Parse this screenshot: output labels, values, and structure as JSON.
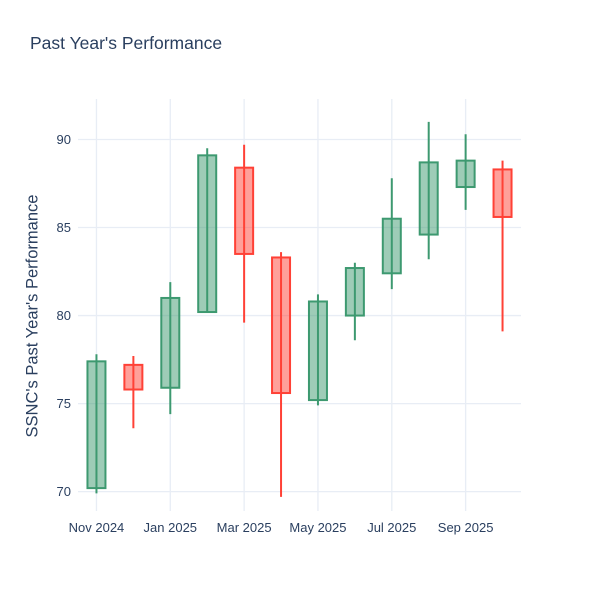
{
  "chart_data": {
    "type": "candlestick",
    "title": "Past Year's Performance",
    "xlabel": "",
    "ylabel": "SSNC's Past Year's Performance",
    "ylim": [
      68.9,
      92.3
    ],
    "grid": true,
    "legend": "none",
    "y_ticks": [
      70,
      75,
      80,
      85,
      90
    ],
    "x_ticks": [
      {
        "candle_index": 0,
        "label": "Nov 2024"
      },
      {
        "candle_index": 2,
        "label": "Jan 2025"
      },
      {
        "candle_index": 4,
        "label": "Mar 2025"
      },
      {
        "candle_index": 6,
        "label": "May 2025"
      },
      {
        "candle_index": 8,
        "label": "Jul 2025"
      },
      {
        "candle_index": 10,
        "label": "Sep 2025"
      }
    ],
    "candles": [
      {
        "period": "Nov 2024",
        "open": 70.2,
        "high": 77.8,
        "low": 69.9,
        "close": 77.4
      },
      {
        "period": "Dec 2024",
        "open": 77.2,
        "high": 77.7,
        "low": 73.6,
        "close": 75.8
      },
      {
        "period": "Jan 2025",
        "open": 75.9,
        "high": 81.9,
        "low": 74.4,
        "close": 81.0
      },
      {
        "period": "Feb 2025",
        "open": 80.2,
        "high": 89.5,
        "low": 80.2,
        "close": 89.1
      },
      {
        "period": "Mar 2025",
        "open": 88.4,
        "high": 89.7,
        "low": 79.6,
        "close": 83.5
      },
      {
        "period": "Apr 2025",
        "open": 83.3,
        "high": 83.6,
        "low": 69.7,
        "close": 75.6
      },
      {
        "period": "May 2025",
        "open": 75.2,
        "high": 81.2,
        "low": 74.9,
        "close": 80.8
      },
      {
        "period": "Jun 2025",
        "open": 80.0,
        "high": 83.0,
        "low": 78.6,
        "close": 82.7
      },
      {
        "period": "Jul 2025",
        "open": 82.4,
        "high": 87.8,
        "low": 81.5,
        "close": 85.5
      },
      {
        "period": "Aug 2025",
        "open": 84.6,
        "high": 91.0,
        "low": 83.2,
        "close": 88.7
      },
      {
        "period": "Sep 2025",
        "open": 87.3,
        "high": 90.3,
        "low": 86.0,
        "close": 88.8
      },
      {
        "period": "Oct 2025",
        "open": 88.3,
        "high": 88.8,
        "low": 79.1,
        "close": 85.6
      }
    ],
    "colors": {
      "increasing": "#3D9970",
      "decreasing": "#FF4136",
      "grid": "#E8EDF5",
      "text": "#2a3f5f",
      "background": "#ffffff"
    }
  }
}
